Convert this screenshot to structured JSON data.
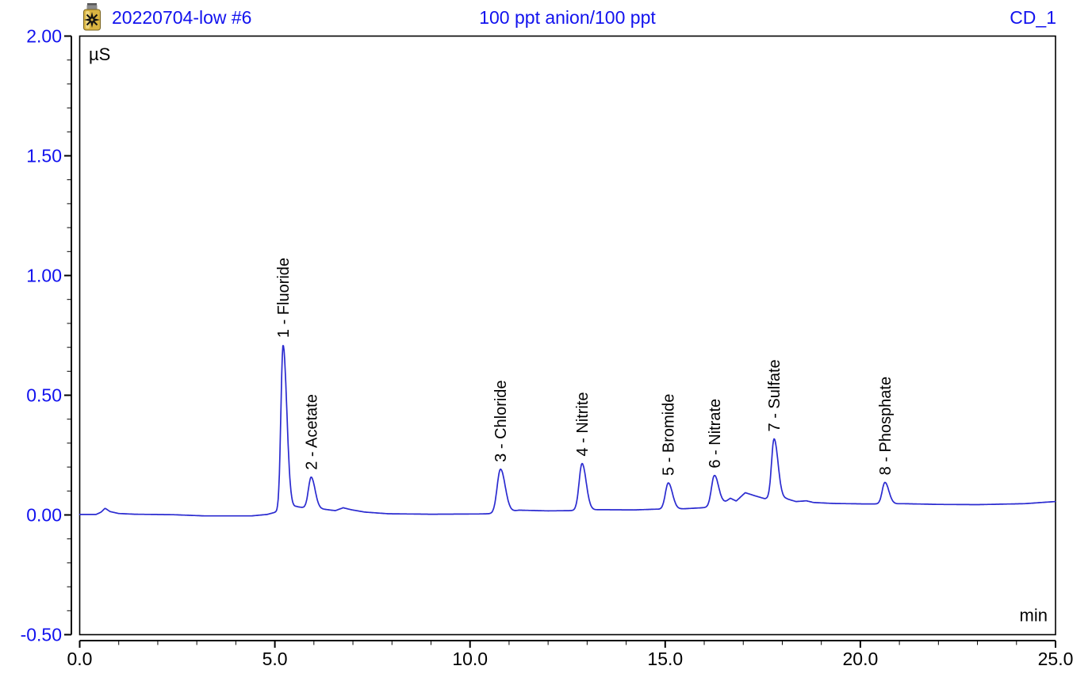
{
  "header": {
    "sample_name": "20220704-low #6",
    "injection_title": "100 ppt anion/100 ppt",
    "channel": "CD_1"
  },
  "colors": {
    "header_blue": "#1212ee",
    "axis_label_blue": "#1212ee",
    "trace_blue": "#2b2bd0",
    "axis_black": "#000000",
    "vial_gold": "#d9b441",
    "vial_cap_gray": "#8a8a8a"
  },
  "chart_data": {
    "type": "line",
    "title": "100 ppt anion/100 ppt",
    "detector_channel": "CD_1",
    "y_unit": "µS",
    "x_unit": "min",
    "x_range": [
      0.0,
      25.0
    ],
    "y_range": [
      -0.5,
      2.0
    ],
    "x_major_step": 5.0,
    "x_minor_step": 1.0,
    "y_major_step": 0.5,
    "y_minor_step": 0.1,
    "x_tick_labels": [
      "0.0",
      "5.0",
      "10.0",
      "15.0",
      "20.0",
      "25.0"
    ],
    "y_tick_labels": [
      "-0.50",
      "0.00",
      "0.50",
      "1.00",
      "1.50",
      "2.00"
    ],
    "grid": false,
    "legend": false,
    "peaks": [
      {
        "number": 1,
        "analyte": "Fluoride",
        "label": "1 - Fluoride",
        "rt_min": 5.21,
        "apex_uS": 0.7,
        "gauss_h": 0.69,
        "sigma_l": 0.055,
        "sigma_r": 0.095
      },
      {
        "number": 2,
        "analyte": "Acetate",
        "label": "2 - Acetate",
        "rt_min": 5.93,
        "apex_uS": 0.16,
        "gauss_h": 0.13,
        "sigma_l": 0.07,
        "sigma_r": 0.1
      },
      {
        "number": 3,
        "analyte": "Chloride",
        "label": "3 - Chloride",
        "rt_min": 10.78,
        "apex_uS": 0.19,
        "gauss_h": 0.185,
        "sigma_l": 0.085,
        "sigma_r": 0.12
      },
      {
        "number": 4,
        "analyte": "Nitrite",
        "label": "4 - Nitrite",
        "rt_min": 12.87,
        "apex_uS": 0.22,
        "gauss_h": 0.195,
        "sigma_l": 0.075,
        "sigma_r": 0.105
      },
      {
        "number": 5,
        "analyte": "Bromide",
        "label": "5 - Bromide",
        "rt_min": 15.08,
        "apex_uS": 0.13,
        "gauss_h": 0.11,
        "sigma_l": 0.075,
        "sigma_r": 0.105
      },
      {
        "number": 6,
        "analyte": "Nitrate",
        "label": "6 - Nitrate",
        "rt_min": 16.26,
        "apex_uS": 0.17,
        "gauss_h": 0.13,
        "sigma_l": 0.075,
        "sigma_r": 0.105
      },
      {
        "number": 7,
        "analyte": "Sulfate",
        "label": "7 - Sulfate",
        "rt_min": 17.79,
        "apex_uS": 0.32,
        "gauss_h": 0.25,
        "sigma_l": 0.065,
        "sigma_r": 0.1
      },
      {
        "number": 8,
        "analyte": "Phosphate",
        "label": "8 - Phosphate",
        "rt_min": 20.63,
        "apex_uS": 0.14,
        "gauss_h": 0.09,
        "sigma_l": 0.07,
        "sigma_r": 0.1
      }
    ],
    "baseline_points": [
      [
        0.0,
        0.002
      ],
      [
        0.42,
        0.002
      ],
      [
        0.55,
        0.012
      ],
      [
        0.65,
        0.028
      ],
      [
        0.78,
        0.014
      ],
      [
        1.0,
        0.006
      ],
      [
        1.4,
        0.003
      ],
      [
        2.4,
        0.001
      ],
      [
        3.2,
        -0.004
      ],
      [
        4.4,
        -0.004
      ],
      [
        4.8,
        0.002
      ],
      [
        5.21,
        0.02
      ],
      [
        5.55,
        0.035
      ],
      [
        5.75,
        0.03
      ],
      [
        5.93,
        0.028
      ],
      [
        6.25,
        0.024
      ],
      [
        6.55,
        0.018
      ],
      [
        6.75,
        0.03
      ],
      [
        6.95,
        0.022
      ],
      [
        7.3,
        0.012
      ],
      [
        7.9,
        0.005
      ],
      [
        9.0,
        0.003
      ],
      [
        10.2,
        0.004
      ],
      [
        10.78,
        0.006
      ],
      [
        11.25,
        0.02
      ],
      [
        12.0,
        0.017
      ],
      [
        12.55,
        0.018
      ],
      [
        12.87,
        0.02
      ],
      [
        13.3,
        0.022
      ],
      [
        14.2,
        0.021
      ],
      [
        14.75,
        0.024
      ],
      [
        15.1,
        0.024
      ],
      [
        15.5,
        0.026
      ],
      [
        15.95,
        0.03
      ],
      [
        16.26,
        0.035
      ],
      [
        16.55,
        0.055
      ],
      [
        16.67,
        0.07
      ],
      [
        16.82,
        0.058
      ],
      [
        17.05,
        0.093
      ],
      [
        17.3,
        0.08
      ],
      [
        17.55,
        0.068
      ],
      [
        17.8,
        0.068
      ],
      [
        18.1,
        0.068
      ],
      [
        18.35,
        0.056
      ],
      [
        18.62,
        0.059
      ],
      [
        18.8,
        0.052
      ],
      [
        19.3,
        0.048
      ],
      [
        20.1,
        0.046
      ],
      [
        20.63,
        0.046
      ],
      [
        21.1,
        0.047
      ],
      [
        22.0,
        0.044
      ],
      [
        23.0,
        0.043
      ],
      [
        24.2,
        0.047
      ],
      [
        25.0,
        0.056
      ]
    ]
  }
}
